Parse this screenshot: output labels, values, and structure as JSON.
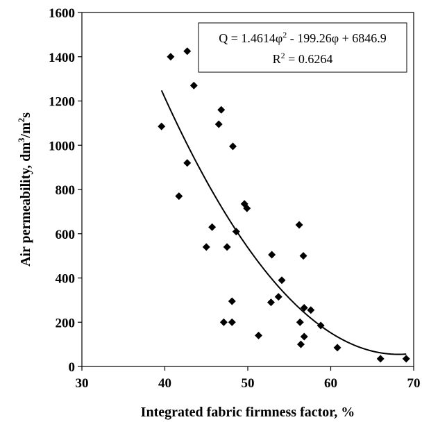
{
  "chart_data": {
    "type": "scatter",
    "xlabel": "Integrated fabric firmness factor, %",
    "ylabel_parts": [
      "Air permeability, dm",
      "3",
      "/m",
      "2",
      "s"
    ],
    "xlim": [
      30,
      70
    ],
    "ylim": [
      0,
      1600
    ],
    "xticks": [
      30,
      40,
      50,
      60,
      70
    ],
    "yticks": [
      0,
      200,
      400,
      600,
      800,
      1000,
      1200,
      1400,
      1600
    ],
    "grid": false,
    "points": [
      [
        39.6,
        1085
      ],
      [
        40.7,
        1400
      ],
      [
        42.7,
        1425
      ],
      [
        43.5,
        1270
      ],
      [
        41.7,
        770
      ],
      [
        42.7,
        920
      ],
      [
        46.5,
        1095
      ],
      [
        46.8,
        1160
      ],
      [
        48.2,
        995
      ],
      [
        45.7,
        630
      ],
      [
        45.0,
        540
      ],
      [
        47.5,
        540
      ],
      [
        48.6,
        610
      ],
      [
        49.6,
        735
      ],
      [
        49.9,
        715
      ],
      [
        47.1,
        200
      ],
      [
        48.1,
        295
      ],
      [
        48.1,
        200
      ],
      [
        51.3,
        140
      ],
      [
        52.9,
        505
      ],
      [
        52.8,
        290
      ],
      [
        53.7,
        315
      ],
      [
        54.1,
        390
      ],
      [
        56.2,
        640
      ],
      [
        56.7,
        500
      ],
      [
        56.3,
        200
      ],
      [
        56.8,
        265
      ],
      [
        57.6,
        255
      ],
      [
        56.8,
        135
      ],
      [
        56.4,
        100
      ],
      [
        58.8,
        185
      ],
      [
        60.8,
        85
      ],
      [
        66.0,
        35
      ],
      [
        69.1,
        35
      ]
    ],
    "trendline": {
      "type": "polynomial",
      "coefficients": [
        1.4614,
        -199.26,
        6846.9
      ],
      "x_range": [
        39.6,
        69.1
      ]
    },
    "annotation": {
      "line1_parts": [
        "Q = 1.4614φ",
        "2",
        " - 199.26φ + 6846.9"
      ],
      "line2_parts": [
        "R",
        "2",
        " = 0.6264"
      ]
    },
    "colors": {
      "marker": "#000000",
      "line": "#000000"
    }
  }
}
